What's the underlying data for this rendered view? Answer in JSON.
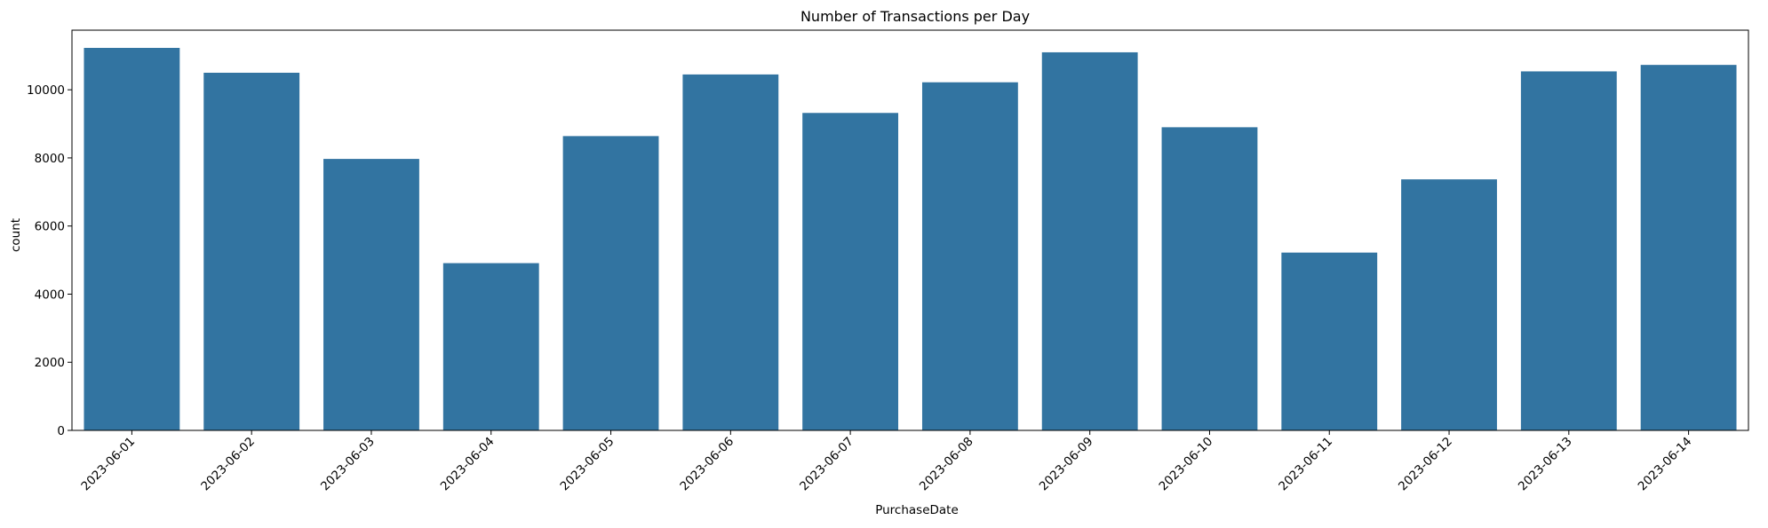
{
  "chart_data": {
    "type": "bar",
    "title": "Number of Transactions per Day",
    "xlabel": "PurchaseDate",
    "ylabel": "count",
    "categories": [
      "2023-06-01",
      "2023-06-02",
      "2023-06-03",
      "2023-06-04",
      "2023-06-05",
      "2023-06-06",
      "2023-06-07",
      "2023-06-08",
      "2023-06-09",
      "2023-06-10",
      "2023-06-11",
      "2023-06-12",
      "2023-06-13",
      "2023-06-14"
    ],
    "values": [
      11230,
      10500,
      7970,
      4910,
      8640,
      10450,
      9320,
      10220,
      11100,
      8900,
      5220,
      7370,
      10540,
      10730
    ],
    "ylim": [
      0,
      11750
    ],
    "yticks": [
      0,
      2000,
      4000,
      6000,
      8000,
      10000
    ],
    "bar_color": "#3274a1",
    "grid": false,
    "legend": "none"
  }
}
